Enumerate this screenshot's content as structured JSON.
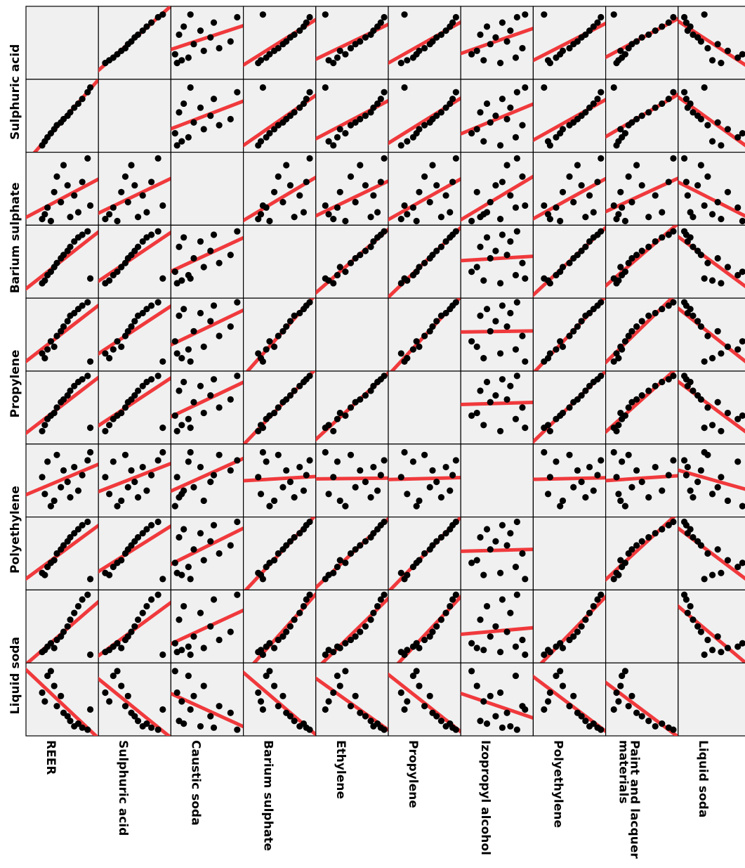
{
  "chart_data": {
    "type": "scatter-matrix",
    "title": "",
    "column_labels": [
      "REER",
      "Sulphuric acid",
      "Caustic soda",
      "Barium sulphate",
      "Ethylene",
      "Propylene",
      "Izopropyl alcohol",
      "Polyethylene",
      "Paint and lacquer materials",
      "Liquid soda"
    ],
    "row_labels": [
      "Sulphuric acid",
      "Barium sulphate",
      "Propylene",
      "Polyethylene",
      "Liquid soda"
    ],
    "colors": {
      "points": "#000000",
      "fit_line": "#f0393c",
      "panel": "#f0f0f0"
    },
    "normalized_axis_range": [
      0,
      1
    ],
    "observations": [
      [
        0.2,
        0.06,
        0.05,
        0.18,
        0.22,
        0.15,
        0.55,
        0.21,
        0.12,
        0.6
      ],
      [
        0.24,
        0.12,
        0.12,
        0.22,
        0.15,
        0.24,
        0.3,
        0.18,
        0.15,
        0.47
      ],
      [
        0.28,
        0.18,
        0.22,
        0.3,
        0.28,
        0.33,
        0.78,
        0.3,
        0.2,
        0.85
      ],
      [
        0.33,
        0.24,
        0.02,
        0.35,
        0.4,
        0.38,
        0.12,
        0.36,
        0.25,
        0.92
      ],
      [
        0.38,
        0.3,
        0.45,
        0.42,
        0.32,
        0.42,
        0.2,
        0.4,
        0.18,
        0.7
      ],
      [
        0.42,
        0.36,
        0.68,
        0.48,
        0.48,
        0.5,
        0.88,
        0.5,
        0.3,
        0.4
      ],
      [
        0.48,
        0.4,
        0.3,
        0.55,
        0.55,
        0.58,
        0.4,
        0.56,
        0.35,
        0.55
      ],
      [
        0.52,
        0.45,
        0.85,
        0.6,
        0.62,
        0.62,
        0.65,
        0.62,
        0.42,
        0.3
      ],
      [
        0.58,
        0.5,
        0.55,
        0.66,
        0.7,
        0.68,
        0.48,
        0.68,
        0.5,
        0.25
      ],
      [
        0.62,
        0.55,
        0.08,
        0.72,
        0.78,
        0.75,
        0.25,
        0.74,
        0.6,
        0.18
      ],
      [
        0.68,
        0.62,
        0.4,
        0.8,
        0.82,
        0.82,
        0.7,
        0.8,
        0.7,
        0.1
      ],
      [
        0.74,
        0.68,
        0.15,
        0.86,
        0.88,
        0.88,
        0.35,
        0.86,
        0.8,
        0.14
      ],
      [
        0.8,
        0.75,
        0.6,
        0.9,
        0.93,
        0.92,
        0.58,
        0.92,
        0.9,
        0.08
      ],
      [
        0.88,
        0.85,
        0.95,
        0.95,
        0.98,
        0.97,
        0.8,
        0.97,
        0.97,
        0.05
      ],
      [
        0.92,
        0.92,
        0.25,
        0.25,
        0.1,
        0.2,
        0.92,
        0.12,
        0.08,
        0.35
      ]
    ]
  }
}
